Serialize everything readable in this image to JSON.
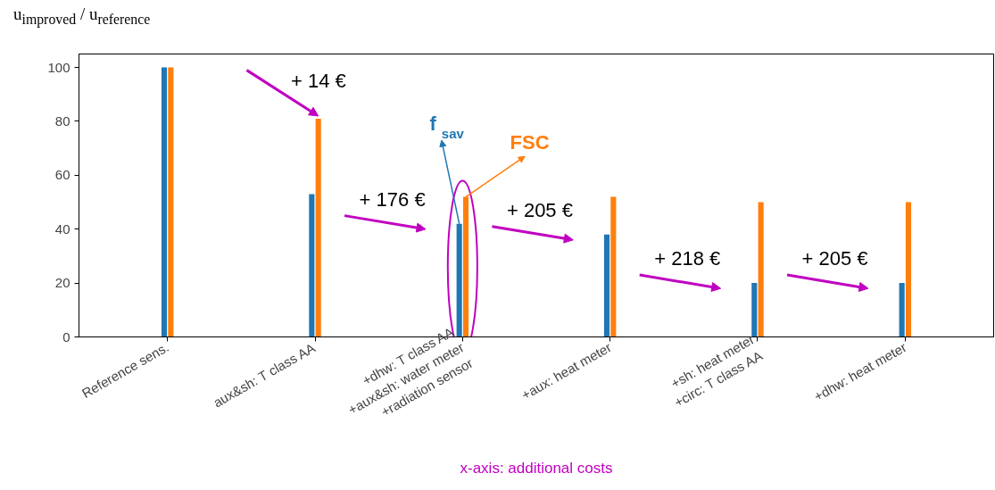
{
  "chart_data": {
    "type": "bar",
    "ylabel": "u$_{improved}$ / u$_{reference}$",
    "xlabel": "x-axis: additional costs",
    "categories": [
      "Reference sens.",
      "aux&sh: T class AA",
      "+dhw: T class AA\n+aux&sh: water meter\n+radiation sensor",
      "+aux: heat meter",
      "+sh: heat meter\n+circ: T class AA",
      "+dhw: heat meter"
    ],
    "ylim": [
      0,
      105
    ],
    "yticks": [
      0,
      20,
      40,
      60,
      80,
      100
    ],
    "series": [
      {
        "name": "f$_{sav}$",
        "color": "#1f77b4",
        "values": [
          100,
          53,
          42,
          38,
          20,
          20
        ]
      },
      {
        "name": "FSC",
        "color": "#ff7f0e",
        "values": [
          100,
          81,
          52,
          52,
          50,
          50
        ]
      }
    ],
    "annotations": [
      "+ 14 €",
      "+ 176 €",
      "+ 205 €",
      "+ 218 €",
      "+ 205 €"
    ],
    "grid": false
  }
}
